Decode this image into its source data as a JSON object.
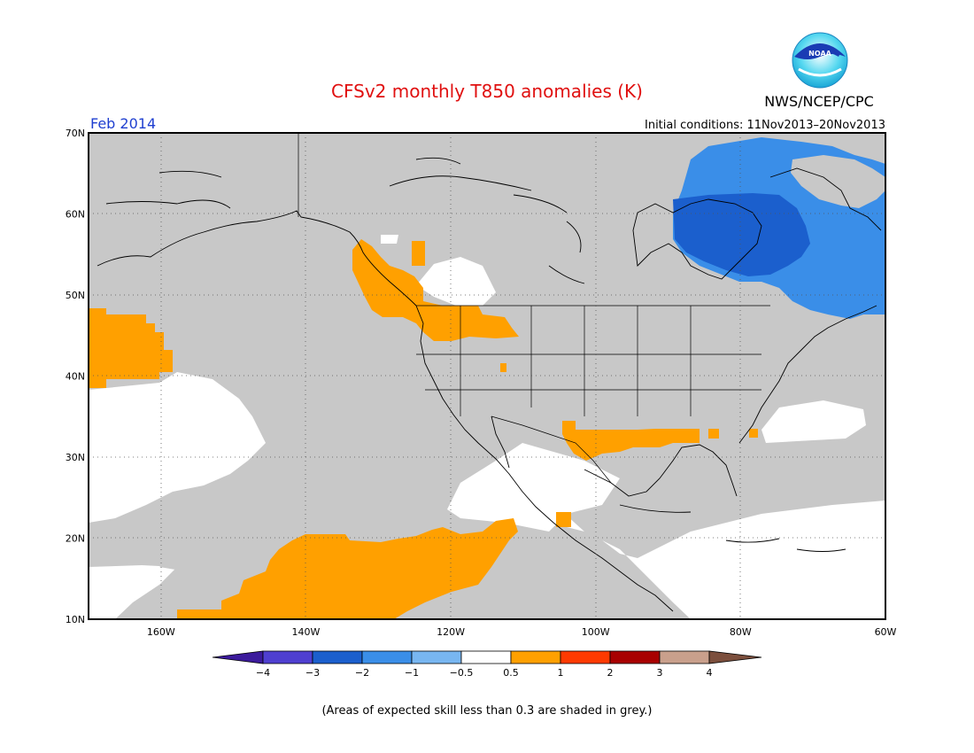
{
  "header": {
    "title": "CFSv2 monthly T850 anomalies (K)",
    "org": "NWS/NCEP/CPC",
    "logo_text": "NOAA",
    "month": "Feb 2014",
    "initial_conditions": "Initial conditions: 11Nov2013–20Nov2013"
  },
  "map": {
    "lat_labels": [
      "70N",
      "60N",
      "50N",
      "40N",
      "30N",
      "20N",
      "10N"
    ],
    "lon_labels": [
      "160W",
      "140W",
      "120W",
      "100W",
      "80W",
      "60W"
    ],
    "lat_range": [
      10,
      70
    ],
    "lon_range": [
      -170,
      -60
    ]
  },
  "legend": {
    "labels": [
      "−4",
      "−3",
      "−2",
      "−1",
      "−0.5",
      "0.5",
      "1",
      "2",
      "3",
      "4"
    ],
    "colors": [
      "#3c1b9c",
      "#4f3fd0",
      "#1b5fcd",
      "#3a8ee8",
      "#78b6f1",
      "#ffffff",
      "#ffa000",
      "#ff3a00",
      "#a80000",
      "#c9a08c",
      "#7c4f3d"
    ]
  },
  "footnote": "(Areas of expected skill less than 0.3 are shaded in grey.)",
  "colors": {
    "title": "#e01010",
    "month": "#2040d0",
    "grey": "#c8c8c8",
    "orange": "#ffa000",
    "blue_light": "#3a8ee8",
    "blue_dark": "#1b5fcd"
  }
}
